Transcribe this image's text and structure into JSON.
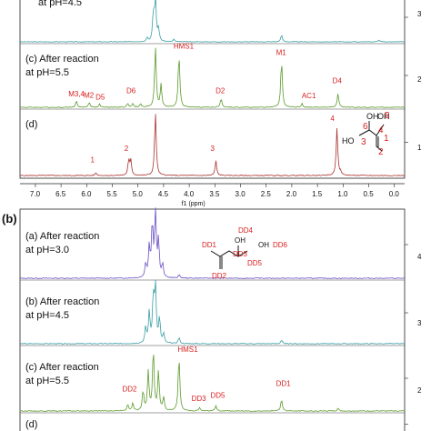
{
  "chart_data": [
    {
      "type": "line",
      "panel_label": "",
      "x_unit_label": "f1 (ppm)",
      "x_ticks": [
        "7.0",
        "6.5",
        "6.0",
        "5.5",
        "5.0",
        "4.5",
        "4.0",
        "3.5",
        "3.0",
        "2.5",
        "2.0",
        "1.5",
        "1.0",
        "0.5",
        "0.0"
      ],
      "xlim": [
        7.3,
        -0.2
      ],
      "row_numbers": [
        "3",
        "2",
        "1"
      ],
      "spectra": [
        {
          "id": "b",
          "label_lines": [
            "at pH=4.5"
          ],
          "color": "#3a9ea5",
          "peaks": [
            [
              4.82,
              0.08
            ],
            [
              4.7,
              0.55
            ],
            [
              4.66,
              0.85
            ],
            [
              4.6,
              0.25
            ],
            [
              4.3,
              0.05
            ],
            [
              2.2,
              0.14
            ],
            [
              0.3,
              0.04
            ]
          ],
          "annotations": []
        },
        {
          "id": "c",
          "label_lines": [
            "(c) After reaction",
            "at pH=5.5"
          ],
          "color": "#5c9a2c",
          "peaks": [
            [
              6.2,
              0.1
            ],
            [
              5.95,
              0.08
            ],
            [
              5.75,
              0.05
            ],
            [
              5.2,
              0.06
            ],
            [
              5.1,
              0.06
            ],
            [
              4.95,
              0.05
            ],
            [
              4.66,
              0.95
            ],
            [
              4.55,
              0.35
            ],
            [
              4.2,
              0.85
            ],
            [
              3.38,
              0.14
            ],
            [
              2.2,
              0.75
            ],
            [
              1.8,
              0.06
            ],
            [
              1.1,
              0.22
            ]
          ],
          "annotations": [
            {
              "text": "M3,4",
              "x": 6.25,
              "dy": -0.17
            },
            {
              "text": "M2",
              "x": 5.95,
              "dy": -0.15
            },
            {
              "text": "D5",
              "x": 5.72,
              "dy": -0.12
            },
            {
              "text": "D6",
              "x": 5.12,
              "dy": -0.22
            },
            {
              "text": "HMS1",
              "x": 4.2,
              "dy": -0.92
            },
            {
              "text": "D2",
              "x": 3.38,
              "dy": -0.22
            },
            {
              "text": "M1",
              "x": 2.2,
              "dy": -0.82
            },
            {
              "text": "AC1",
              "x": 1.7,
              "dy": -0.14
            },
            {
              "text": "D4",
              "x": 1.1,
              "dy": -0.38
            }
          ]
        },
        {
          "id": "d",
          "label_lines": [
            "(d)"
          ],
          "color": "#a8322e",
          "peaks": [
            [
              5.82,
              0.04
            ],
            [
              5.18,
              0.22
            ],
            [
              5.14,
              0.22
            ],
            [
              4.66,
              0.95
            ],
            [
              3.48,
              0.22
            ],
            [
              1.12,
              0.72
            ],
            [
              1.05,
              0.05
            ]
          ],
          "annotations": [
            {
              "text": "1",
              "x": 5.82,
              "dy": -0.2
            },
            {
              "text": "2",
              "x": 5.16,
              "dy": -0.37
            },
            {
              "text": "3",
              "x": 3.48,
              "dy": -0.37
            },
            {
              "text": "4",
              "x": 1.14,
              "dy": -0.82
            }
          ]
        }
      ],
      "structure_labels": [
        "6",
        "OH",
        "OH",
        "5",
        "4",
        "3",
        "HO",
        "1",
        "2"
      ]
    },
    {
      "type": "line",
      "panel_label": "(b)",
      "x_unit_label": "",
      "x_ticks": [],
      "xlim": [
        7.3,
        -0.2
      ],
      "row_numbers": [
        "4",
        "3",
        "2"
      ],
      "spectra": [
        {
          "id": "a",
          "label_lines": [
            "(a) After reaction",
            "at pH=3.0"
          ],
          "color": "#6a4fc4",
          "peaks": [
            [
              4.85,
              0.2
            ],
            [
              4.78,
              0.45
            ],
            [
              4.72,
              0.8
            ],
            [
              4.66,
              0.95
            ],
            [
              4.6,
              0.55
            ],
            [
              4.52,
              0.2
            ],
            [
              4.2,
              0.05
            ]
          ],
          "annotations": []
        },
        {
          "id": "b",
          "label_lines": [
            "(b) After reaction",
            "at pH=4.5"
          ],
          "color": "#3a9ea5",
          "peaks": [
            [
              4.85,
              0.25
            ],
            [
              4.78,
              0.5
            ],
            [
              4.7,
              0.75
            ],
            [
              4.66,
              0.9
            ],
            [
              4.58,
              0.4
            ],
            [
              4.5,
              0.15
            ],
            [
              4.2,
              0.1
            ],
            [
              2.2,
              0.06
            ]
          ],
          "annotations": []
        },
        {
          "id": "c",
          "label_lines": [
            "(c) After reaction",
            "at pH=5.5"
          ],
          "color": "#5c9a2c",
          "peaks": [
            [
              5.2,
              0.1
            ],
            [
              5.1,
              0.12
            ],
            [
              4.9,
              0.3
            ],
            [
              4.8,
              0.6
            ],
            [
              4.7,
              0.95
            ],
            [
              4.6,
              0.6
            ],
            [
              4.5,
              0.2
            ],
            [
              4.2,
              0.85
            ],
            [
              3.8,
              0.05
            ],
            [
              3.48,
              0.08
            ],
            [
              2.2,
              0.18
            ],
            [
              1.1,
              0.04
            ]
          ],
          "annotations": [
            {
              "text": "HMS1",
              "x": 4.12,
              "dy": -0.9
            },
            {
              "text": "DD2",
              "x": 5.2,
              "dy": -0.3
            },
            {
              "text": "DD3",
              "x": 3.85,
              "dy": -0.15
            },
            {
              "text": "DD5",
              "x": 3.48,
              "dy": -0.2
            },
            {
              "text": "DD1",
              "x": 2.2,
              "dy": -0.38
            }
          ]
        },
        {
          "id": "d",
          "label_lines": [
            "(d)"
          ],
          "color": "#a8322e",
          "peaks": [],
          "annotations": []
        }
      ],
      "structure_labels": [
        "DD4",
        "OH",
        "DD1",
        "DD6",
        "OH",
        "DD3",
        "DD5",
        "DD2"
      ]
    }
  ]
}
